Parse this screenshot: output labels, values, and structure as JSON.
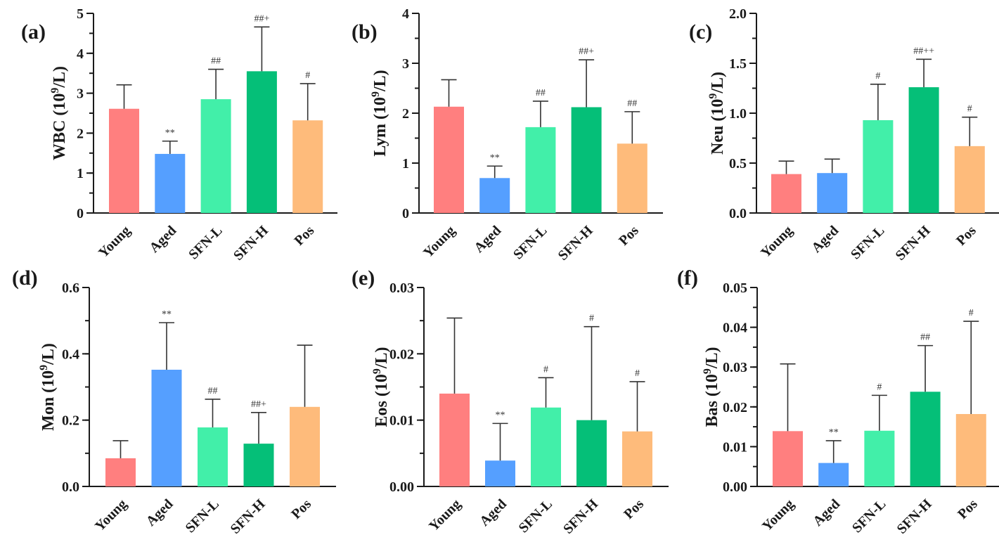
{
  "figure": {
    "groups": [
      "Young",
      "Aged",
      "SFN-L",
      "SFN-H",
      "Pos"
    ],
    "colors": {
      "Young": "#FF7F7F",
      "Aged": "#559FFF",
      "SFN-L": "#42EFA9",
      "SFN-H": "#05BF78",
      "Pos": "#FEBB7B"
    }
  },
  "chart_data": [
    {
      "type": "bar",
      "panel": "(a)",
      "title": "",
      "xlabel": "",
      "ylabel": "WBC (10^9/L)",
      "ylabel_base": "WBC (10",
      "ylabel_sup": "9",
      "ylabel_tail": "/L)",
      "ylim": [
        0,
        5
      ],
      "yticks": [
        0,
        1,
        2,
        3,
        4,
        5
      ],
      "ytick_labels": [
        "0",
        "1",
        "2",
        "3",
        "4",
        "5"
      ],
      "minor_step": 0.5,
      "categories": [
        "Young",
        "Aged",
        "SFN-L",
        "SFN-H",
        "Pos"
      ],
      "values": [
        2.61,
        1.48,
        2.85,
        3.55,
        2.32
      ],
      "error_upper": [
        3.21,
        1.8,
        3.6,
        4.66,
        3.24
      ],
      "annotations": [
        "",
        "**",
        "##",
        "##+",
        "#"
      ]
    },
    {
      "type": "bar",
      "panel": "(b)",
      "title": "",
      "xlabel": "",
      "ylabel": "Lym (10^9/L)",
      "ylabel_base": "Lym (10",
      "ylabel_sup": "9",
      "ylabel_tail": "/L)",
      "ylim": [
        0,
        4
      ],
      "yticks": [
        0,
        1,
        2,
        3,
        4
      ],
      "ytick_labels": [
        "0",
        "1",
        "2",
        "3",
        "4"
      ],
      "minor_step": 0.5,
      "categories": [
        "Young",
        "Aged",
        "SFN-L",
        "SFN-H",
        "Pos"
      ],
      "values": [
        2.13,
        0.7,
        1.72,
        2.12,
        1.39
      ],
      "error_upper": [
        2.67,
        0.94,
        2.24,
        3.07,
        2.03
      ],
      "annotations": [
        "",
        "**",
        "##",
        "##+",
        "##"
      ]
    },
    {
      "type": "bar",
      "panel": "(c)",
      "title": "",
      "xlabel": "",
      "ylabel": "Neu (10^9/L)",
      "ylabel_base": "Neu (10",
      "ylabel_sup": "9",
      "ylabel_tail": "/L)",
      "ylim": [
        0,
        2.0
      ],
      "yticks": [
        0,
        0.5,
        1.0,
        1.5,
        2.0
      ],
      "ytick_labels": [
        "0.0",
        "0.5",
        "1.0",
        "1.5",
        "2.0"
      ],
      "minor_step": 0.25,
      "categories": [
        "Young",
        "Aged",
        "SFN-L",
        "SFN-H",
        "Pos"
      ],
      "values": [
        0.39,
        0.4,
        0.93,
        1.26,
        0.67
      ],
      "error_upper": [
        0.52,
        0.54,
        1.29,
        1.54,
        0.96
      ],
      "annotations": [
        "",
        "",
        "#",
        "##++",
        "#"
      ]
    },
    {
      "type": "bar",
      "panel": "(d)",
      "title": "",
      "xlabel": "",
      "ylabel": "Mon (10^9/L)",
      "ylabel_base": "Mon (10",
      "ylabel_sup": "9",
      "ylabel_tail": "/L)",
      "ylim": [
        0,
        0.6
      ],
      "yticks": [
        0,
        0.2,
        0.4,
        0.6
      ],
      "ytick_labels": [
        "0.0",
        "0.2",
        "0.4",
        "0.6"
      ],
      "minor_step": 0.1,
      "categories": [
        "Young",
        "Aged",
        "SFN-L",
        "SFN-H",
        "Pos"
      ],
      "values": [
        0.085,
        0.352,
        0.178,
        0.129,
        0.24
      ],
      "error_upper": [
        0.138,
        0.494,
        0.263,
        0.223,
        0.426
      ],
      "annotations": [
        "",
        "**",
        "##",
        "##+",
        ""
      ]
    },
    {
      "type": "bar",
      "panel": "(e)",
      "title": "",
      "xlabel": "",
      "ylabel": "Eos (10^9/L)",
      "ylabel_base": "Eos (10",
      "ylabel_sup": "9",
      "ylabel_tail": "/L)",
      "ylim": [
        0,
        0.03
      ],
      "yticks": [
        0,
        0.01,
        0.02,
        0.03
      ],
      "ytick_labels": [
        "0.00",
        "0.01",
        "0.02",
        "0.03"
      ],
      "minor_step": 0.005,
      "categories": [
        "Young",
        "Aged",
        "SFN-L",
        "SFN-H",
        "Pos"
      ],
      "values": [
        0.014,
        0.0039,
        0.0119,
        0.01,
        0.0083
      ],
      "error_upper": [
        0.0254,
        0.0095,
        0.0164,
        0.0241,
        0.0158
      ],
      "annotations": [
        "",
        "**",
        "#",
        "#",
        "#"
      ]
    },
    {
      "type": "bar",
      "panel": "(f)",
      "title": "",
      "xlabel": "",
      "ylabel": "Bas (10^9/L)",
      "ylabel_base": "Bas (10",
      "ylabel_sup": "9",
      "ylabel_tail": "/L)",
      "ylim": [
        0,
        0.05
      ],
      "yticks": [
        0,
        0.01,
        0.02,
        0.03,
        0.04,
        0.05
      ],
      "ytick_labels": [
        "0.00",
        "0.01",
        "0.02",
        "0.03",
        "0.04",
        "0.05"
      ],
      "minor_step": 0.005,
      "categories": [
        "Young",
        "Aged",
        "SFN-L",
        "SFN-H",
        "Pos"
      ],
      "values": [
        0.0139,
        0.0059,
        0.014,
        0.0238,
        0.0182
      ],
      "error_upper": [
        0.0308,
        0.0115,
        0.0229,
        0.0354,
        0.0415
      ],
      "annotations": [
        "",
        "**",
        "#",
        "##",
        "#"
      ]
    }
  ]
}
